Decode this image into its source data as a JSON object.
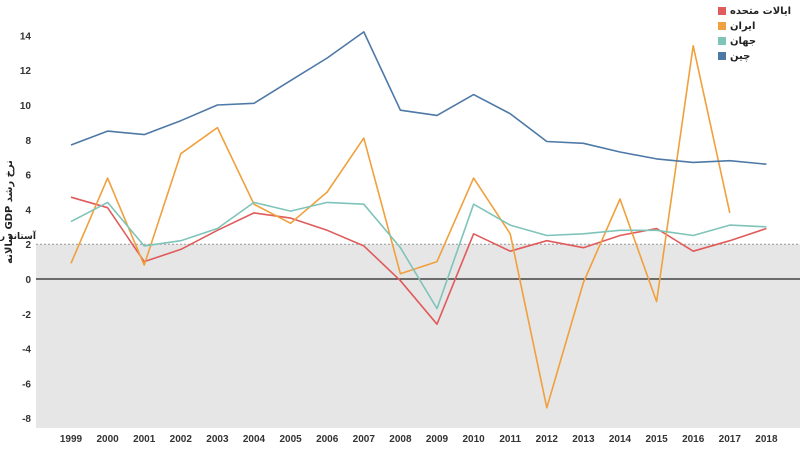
{
  "chart_data": {
    "type": "line",
    "title": "",
    "xlabel": "",
    "ylabel": "نرخ رشد GDP سالانه",
    "ylim": [
      -8.5,
      15
    ],
    "yticks": [
      14,
      12,
      10,
      8,
      6,
      4,
      2,
      0,
      -2,
      -4,
      -6,
      -8
    ],
    "x": [
      1999,
      2000,
      2001,
      2002,
      2003,
      2004,
      2005,
      2006,
      2007,
      2008,
      2009,
      2010,
      2011,
      2012,
      2013,
      2014,
      2015,
      2016,
      2017,
      2018
    ],
    "grid": false,
    "legend_position": "top-right",
    "threshold": {
      "value": 2,
      "label": "آستانه رکود",
      "shaded_below": true,
      "shade_color": "#e6e6e6"
    },
    "series": [
      {
        "name": "ایالات متحده",
        "color": "#e05b5b",
        "values": [
          4.7,
          4.1,
          1.0,
          1.7,
          2.8,
          3.8,
          3.5,
          2.8,
          1.9,
          -0.1,
          -2.6,
          2.6,
          1.6,
          2.2,
          1.8,
          2.5,
          2.9,
          1.6,
          2.2,
          2.9
        ]
      },
      {
        "name": "ایران",
        "color": "#f0a03c",
        "values": [
          0.9,
          5.8,
          0.8,
          7.2,
          8.7,
          4.3,
          3.2,
          5.0,
          8.1,
          0.3,
          1.0,
          5.8,
          2.6,
          -7.4,
          -0.2,
          4.6,
          -1.3,
          13.4,
          3.8,
          null
        ]
      },
      {
        "name": "جهان",
        "color": "#7fc4b9",
        "values": [
          3.3,
          4.4,
          1.9,
          2.2,
          2.9,
          4.4,
          3.9,
          4.4,
          4.3,
          1.8,
          -1.7,
          4.3,
          3.1,
          2.5,
          2.6,
          2.8,
          2.8,
          2.5,
          3.1,
          3.0
        ]
      },
      {
        "name": "چین",
        "color": "#4e79a7",
        "values": [
          7.7,
          8.5,
          8.3,
          9.1,
          10.0,
          10.1,
          11.4,
          12.7,
          14.2,
          9.7,
          9.4,
          10.6,
          9.5,
          7.9,
          7.8,
          7.3,
          6.9,
          6.7,
          6.8,
          6.6
        ]
      }
    ]
  }
}
